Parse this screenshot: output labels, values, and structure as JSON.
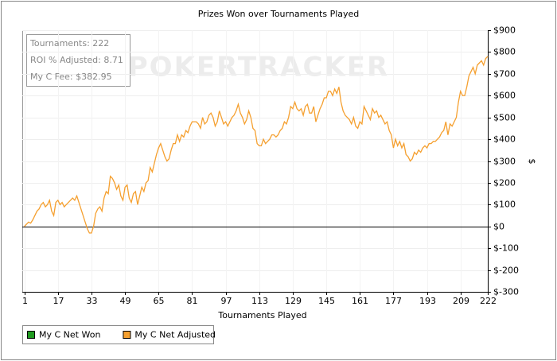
{
  "chart_data": {
    "type": "line",
    "title": "Prizes Won over Tournaments Played",
    "x_label": "Tournaments Played",
    "y_label": "$",
    "watermark": "POKERTRACKER",
    "annotations": [
      "Tournaments: 222",
      "ROI % Adjusted: 8.71",
      "My C Fee: $382.95"
    ],
    "legend_entries": [
      {
        "name": "My C Net Won",
        "color": "#1f9a1f"
      }
    ],
    "xlim": [
      0,
      222
    ],
    "xticks": [
      1,
      17,
      33,
      49,
      65,
      81,
      97,
      113,
      129,
      145,
      161,
      177,
      193,
      209,
      222
    ],
    "ylim": [
      -300,
      900
    ],
    "yticks": [
      {
        "value": 900,
        "label": "$900"
      },
      {
        "value": 800,
        "label": "$800"
      },
      {
        "value": 700,
        "label": "$700"
      },
      {
        "value": 600,
        "label": "$600"
      },
      {
        "value": 500,
        "label": "$500"
      },
      {
        "value": 400,
        "label": "$400"
      },
      {
        "value": 300,
        "label": "$300"
      },
      {
        "value": 200,
        "label": "$200"
      },
      {
        "value": 100,
        "label": "$100"
      },
      {
        "value": 0,
        "label": "$0"
      },
      {
        "value": -100,
        "label": "$-100"
      },
      {
        "value": -200,
        "label": "$-200"
      },
      {
        "value": -300,
        "label": "$-300"
      }
    ],
    "grid": true,
    "x": [
      1,
      2,
      3,
      4,
      5,
      6,
      7,
      8,
      9,
      10,
      11,
      12,
      13,
      14,
      15,
      16,
      17,
      18,
      19,
      20,
      21,
      22,
      23,
      24,
      25,
      26,
      27,
      28,
      29,
      30,
      31,
      32,
      33,
      34,
      35,
      36,
      37,
      38,
      39,
      40,
      41,
      42,
      43,
      44,
      45,
      46,
      47,
      48,
      49,
      50,
      51,
      52,
      53,
      54,
      55,
      56,
      57,
      58,
      59,
      60,
      61,
      62,
      63,
      64,
      65,
      66,
      67,
      68,
      69,
      70,
      71,
      72,
      73,
      74,
      75,
      76,
      77,
      78,
      79,
      80,
      81,
      82,
      83,
      84,
      85,
      86,
      87,
      88,
      89,
      90,
      91,
      92,
      93,
      94,
      95,
      96,
      97,
      98,
      99,
      100,
      101,
      102,
      103,
      104,
      105,
      106,
      107,
      108,
      109,
      110,
      111,
      112,
      113,
      114,
      115,
      116,
      117,
      118,
      119,
      120,
      121,
      122,
      123,
      124,
      125,
      126,
      127,
      128,
      129,
      130,
      131,
      132,
      133,
      134,
      135,
      136,
      137,
      138,
      139,
      140,
      141,
      142,
      143,
      144,
      145,
      146,
      147,
      148,
      149,
      150,
      151,
      152,
      153,
      154,
      155,
      156,
      157,
      158,
      159,
      160,
      161,
      162,
      163,
      164,
      165,
      166,
      167,
      168,
      169,
      170,
      171,
      172,
      173,
      174,
      175,
      176,
      177,
      178,
      179,
      180,
      181,
      182,
      183,
      184,
      185,
      186,
      187,
      188,
      189,
      190,
      191,
      192,
      193,
      194,
      195,
      196,
      197,
      198,
      199,
      200,
      201,
      202,
      203,
      204,
      205,
      206,
      207,
      208,
      209,
      210,
      211,
      212,
      213,
      214,
      215,
      216,
      217,
      218,
      219,
      220,
      221,
      222
    ],
    "series": [
      {
        "name": "My C Net Adjusted",
        "color": "#f5a030",
        "values": [
          0,
          10,
          20,
          15,
          30,
          50,
          70,
          80,
          100,
          110,
          90,
          100,
          120,
          70,
          50,
          110,
          120,
          100,
          110,
          90,
          100,
          110,
          120,
          130,
          120,
          140,
          110,
          80,
          50,
          20,
          -10,
          -30,
          -30,
          0,
          60,
          80,
          90,
          70,
          130,
          160,
          150,
          230,
          220,
          200,
          170,
          190,
          140,
          120,
          180,
          190,
          130,
          110,
          150,
          160,
          100,
          140,
          180,
          160,
          200,
          210,
          270,
          250,
          290,
          330,
          360,
          380,
          350,
          320,
          300,
          310,
          350,
          380,
          380,
          420,
          390,
          420,
          410,
          440,
          430,
          460,
          480,
          480,
          480,
          470,
          450,
          500,
          470,
          480,
          510,
          520,
          500,
          460,
          480,
          530,
          500,
          470,
          480,
          460,
          480,
          500,
          510,
          530,
          560,
          520,
          500,
          470,
          490,
          530,
          500,
          450,
          440,
          380,
          370,
          370,
          400,
          380,
          390,
          400,
          420,
          420,
          410,
          420,
          440,
          450,
          480,
          470,
          500,
          550,
          540,
          570,
          540,
          530,
          540,
          510,
          550,
          560,
          520,
          520,
          550,
          480,
          510,
          540,
          560,
          590,
          590,
          620,
          620,
          600,
          630,
          610,
          640,
          570,
          530,
          510,
          500,
          490,
          470,
          500,
          460,
          450,
          480,
          470,
          550,
          530,
          510,
          490,
          540,
          520,
          530,
          500,
          510,
          490,
          470,
          480,
          440,
          420,
          360,
          400,
          370,
          390,
          360,
          380,
          330,
          320,
          300,
          310,
          340,
          330,
          350,
          340,
          360,
          370,
          360,
          380,
          380,
          390,
          390,
          400,
          410,
          430,
          440,
          480,
          420,
          470,
          460,
          480,
          500,
          570,
          620,
          600,
          600,
          640,
          690,
          710,
          730,
          700,
          740,
          750,
          760,
          740,
          770,
          780
        ]
      }
    ]
  }
}
